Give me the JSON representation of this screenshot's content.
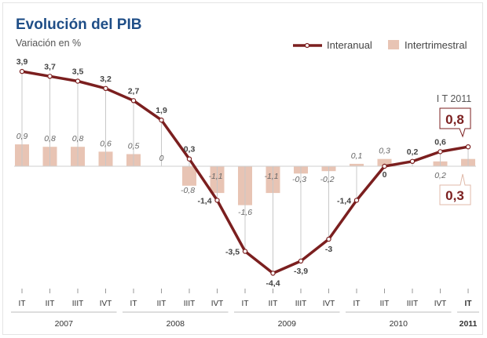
{
  "chart_data": {
    "type": "line+bar",
    "title": "Evolución del PIB",
    "subtitle": "Variación en %",
    "categories": [
      "IT",
      "IIT",
      "IIIT",
      "IVT",
      "IT",
      "IIT",
      "IIIT",
      "IVT",
      "IT",
      "IIT",
      "IIIT",
      "IVT",
      "IT",
      "IIT",
      "IIIT",
      "IVT",
      "IT"
    ],
    "years": [
      {
        "label": "2007",
        "quarters": 4
      },
      {
        "label": "2008",
        "quarters": 4
      },
      {
        "label": "2009",
        "quarters": 4
      },
      {
        "label": "2010",
        "quarters": 4
      },
      {
        "label": "2011",
        "quarters": 1
      }
    ],
    "series": [
      {
        "name": "Interanual",
        "type": "line",
        "color": "#7b1f1f",
        "values": [
          3.9,
          3.7,
          3.5,
          3.2,
          2.7,
          1.9,
          0.3,
          -1.4,
          -3.5,
          -4.4,
          -3.9,
          -3,
          -1.4,
          0,
          0.2,
          0.6,
          0.8
        ],
        "labels": [
          "3,9",
          "3,7",
          "3,5",
          "3,2",
          "2,7",
          "1,9",
          "0,3",
          "-1,4",
          "-3,5",
          "-4,4",
          "-3,9",
          "-3",
          "-1,4",
          "0",
          "0,2",
          "0,6",
          "0,8"
        ]
      },
      {
        "name": "Intertrimestral",
        "type": "bar",
        "color": "#e8c4b4",
        "values": [
          0.9,
          0.8,
          0.8,
          0.6,
          0.5,
          0,
          -0.8,
          -1.1,
          -1.6,
          -1.1,
          -0.3,
          -0.2,
          0.1,
          0.3,
          null,
          0.2,
          0.3
        ],
        "labels": [
          "0,9",
          "0,8",
          "0,8",
          "0,6",
          "0,5",
          "0",
          "-0,8",
          "-1,1",
          "-1,6",
          "-1,1",
          "-0,3",
          "-0,2",
          "0,1",
          "0,3",
          "",
          "0,2",
          "0,3"
        ]
      }
    ],
    "annotation": {
      "label": "I T 2011",
      "interanual": "0,8",
      "intertrimestral": "0,3"
    },
    "legend": "top-right",
    "grid": false
  }
}
